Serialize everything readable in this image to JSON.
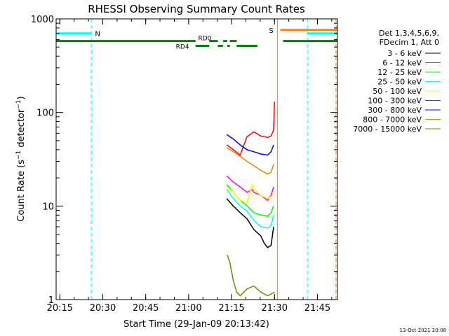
{
  "chart_data": {
    "type": "line",
    "title": "RHESSI Observing Summary Count Rates",
    "xlabel": "Start Time (29-Jan-09 20:13:42)",
    "ylabel_main": "Count Rate (s",
    "ylabel_sup1": "−1",
    "ylabel_mid": " detector",
    "ylabel_sup2": "−1",
    "ylabel_end": ")",
    "ylabel": "Count Rate (s−1 detector−1)",
    "y_scale": "log",
    "xlim": [
      20.2283,
      21.8667
    ],
    "ylim": [
      1,
      1000
    ],
    "x_ticks": [
      {
        "value": 20.25,
        "label": "20:15"
      },
      {
        "value": 20.5,
        "label": "20:30"
      },
      {
        "value": 20.75,
        "label": "20:45"
      },
      {
        "value": 21.0,
        "label": "21:00"
      },
      {
        "value": 21.25,
        "label": "21:15"
      },
      {
        "value": 21.5,
        "label": "21:30"
      },
      {
        "value": 21.75,
        "label": "21:45"
      }
    ],
    "y_ticks": [
      {
        "value": 1,
        "label": "1"
      },
      {
        "value": 10,
        "label": "10"
      },
      {
        "value": 100,
        "label": "100"
      },
      {
        "value": 1000,
        "label": "1000"
      }
    ],
    "legend_header": [
      "Det 1,3,4,5,6,9,",
      "FDecim 1, Att 0"
    ],
    "legend_position": "right",
    "series": [
      {
        "name": "3 - 6 keV",
        "color": "#000000",
        "x": [
          21.222,
          21.26,
          21.3,
          21.34,
          21.38,
          21.42,
          21.44,
          21.46,
          21.48,
          21.495
        ],
        "y": [
          12,
          10,
          8.5,
          7.3,
          5.6,
          4.8,
          4.0,
          3.6,
          3.8,
          6.0
        ]
      },
      {
        "name": "6 - 12 keV",
        "color": "#ff00ff",
        "x": [
          21.222,
          21.26,
          21.3,
          21.34,
          21.37,
          21.38,
          21.42,
          21.46,
          21.48,
          21.495
        ],
        "y": [
          21,
          18,
          16,
          14,
          15,
          14,
          13,
          11.5,
          13,
          16
        ]
      },
      {
        "name": "12 - 25 keV",
        "color": "#00ff00",
        "x": [
          21.222,
          21.26,
          21.3,
          21.34,
          21.38,
          21.42,
          21.46,
          21.48,
          21.495
        ],
        "y": [
          17,
          14,
          11.5,
          10,
          8.5,
          8.0,
          7.8,
          8.5,
          10
        ]
      },
      {
        "name": "25 - 50 keV",
        "color": "#00ffff",
        "x": [
          21.222,
          21.26,
          21.3,
          21.34,
          21.38,
          21.42,
          21.46,
          21.48,
          21.495
        ],
        "y": [
          15,
          12,
          10,
          8.8,
          7.0,
          6.0,
          5.8,
          6.2,
          8.0
        ]
      },
      {
        "name": "50 - 100 keV",
        "color": "#ffff00",
        "x": [
          21.222,
          21.26,
          21.3,
          21.34,
          21.37,
          21.38,
          21.42,
          21.46,
          21.48,
          21.495
        ],
        "y": [
          16,
          14,
          11.5,
          11,
          17,
          15,
          13,
          12,
          12.5,
          14
        ]
      },
      {
        "name": "100 - 300 keV",
        "color": "#ff0000",
        "x": [
          21.222,
          21.26,
          21.3,
          21.34,
          21.38,
          21.42,
          21.46,
          21.48,
          21.495,
          21.5
        ],
        "y": [
          45,
          40,
          35,
          55,
          62,
          56,
          54,
          56,
          65,
          130
        ]
      },
      {
        "name": "300 - 800 keV",
        "color": "#0000ff",
        "x": [
          21.222,
          21.26,
          21.3,
          21.34,
          21.38,
          21.42,
          21.46,
          21.48,
          21.495
        ],
        "y": [
          58,
          52,
          45,
          40,
          38,
          36,
          35,
          38,
          45
        ]
      },
      {
        "name": "800 - 7000 keV",
        "color": "#ff8000",
        "x": [
          21.222,
          21.26,
          21.3,
          21.34,
          21.38,
          21.42,
          21.46,
          21.48,
          21.495
        ],
        "y": [
          42,
          38,
          34,
          30,
          27,
          24,
          22,
          23,
          28
        ]
      },
      {
        "name": "7000 - 15000 keV",
        "color": "#808000",
        "x": [
          21.225,
          21.24,
          21.26,
          21.28,
          21.3,
          21.34,
          21.38,
          21.42,
          21.46,
          21.48,
          21.5
        ],
        "y": [
          3,
          2.5,
          1.6,
          1.2,
          1.1,
          1.3,
          1.4,
          1.2,
          1.1,
          1.15,
          1.2
        ]
      }
    ],
    "flags": {
      "saa": {
        "label": "N",
        "color": "#00ffff",
        "value": 700,
        "segments": [
          [
            20.2283,
            20.4333
          ],
          [
            21.6917,
            21.8667
          ]
        ],
        "boundaries": [
          20.2283,
          20.4333,
          21.6917,
          21.8667
        ]
      },
      "flare": {
        "label": "S",
        "color": "#ff8000",
        "value": 760,
        "segments": [
          [
            21.5333,
            21.8667
          ]
        ],
        "boundaries": [
          21.5167,
          21.8583
        ]
      },
      "eclipse": {
        "color": "#008000",
        "value": 580,
        "segments": [
          [
            20.2283,
            21.04
          ],
          [
            21.55,
            21.8667
          ]
        ]
      },
      "rd0": {
        "label": "RD0",
        "color": "#008000",
        "value": 580,
        "segments": [
          [
            21.12,
            21.17
          ],
          [
            21.2,
            21.225
          ],
          [
            21.24,
            21.28
          ]
        ]
      },
      "rd4": {
        "label": "RD4",
        "color": "#008000",
        "value": 515,
        "segments": [
          [
            21.04,
            21.12
          ],
          [
            21.17,
            21.2
          ],
          [
            21.225,
            21.24
          ],
          [
            21.28,
            21.4
          ]
        ]
      }
    }
  },
  "footer_date": "13-Oct-2021 20:08"
}
